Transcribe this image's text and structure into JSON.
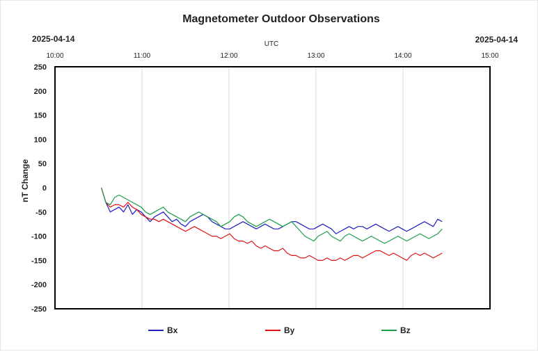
{
  "chart_data": {
    "type": "line",
    "title": "Magnetometer Outdoor Observations",
    "date_left": "2025-04-14",
    "date_right": "2025-04-14",
    "xlabel": "UTC",
    "ylabel": "nT Change",
    "xlim": [
      "10:00",
      "15:00"
    ],
    "x_ticks": [
      "10:00",
      "11:00",
      "12:00",
      "13:00",
      "14:00",
      "15:00"
    ],
    "ylim": [
      -250,
      250
    ],
    "y_ticks": [
      250,
      200,
      150,
      100,
      50,
      0,
      -50,
      -100,
      -150,
      -200,
      -250
    ],
    "grid": {
      "vertical": true,
      "horizontal": false
    },
    "legend_position": "bottom",
    "x_start": "10:32",
    "x_end": "14:27",
    "series": [
      {
        "name": "Bx",
        "color": "#1f1fbf",
        "values": [
          0,
          -30,
          -50,
          -45,
          -40,
          -50,
          -35,
          -55,
          -45,
          -50,
          -60,
          -70,
          -60,
          -55,
          -50,
          -60,
          -70,
          -65,
          -75,
          -80,
          -70,
          -65,
          -60,
          -55,
          -60,
          -70,
          -75,
          -80,
          -85,
          -85,
          -80,
          -75,
          -70,
          -75,
          -80,
          -85,
          -80,
          -75,
          -80,
          -85,
          -85,
          -80,
          -75,
          -70,
          -70,
          -75,
          -80,
          -85,
          -85,
          -80,
          -75,
          -80,
          -85,
          -95,
          -90,
          -85,
          -80,
          -85,
          -80,
          -80,
          -85,
          -80,
          -75,
          -80,
          -85,
          -90,
          -85,
          -80,
          -85,
          -90,
          -85,
          -80,
          -75,
          -70,
          -75,
          -80,
          -65,
          -70
        ]
      },
      {
        "name": "By",
        "color": "#e01010",
        "values": [
          0,
          -30,
          -40,
          -35,
          -35,
          -40,
          -30,
          -40,
          -45,
          -55,
          -60,
          -65,
          -65,
          -70,
          -65,
          -70,
          -75,
          -80,
          -85,
          -90,
          -85,
          -80,
          -85,
          -90,
          -95,
          -100,
          -100,
          -105,
          -100,
          -95,
          -105,
          -110,
          -110,
          -115,
          -110,
          -120,
          -125,
          -120,
          -125,
          -130,
          -130,
          -125,
          -135,
          -140,
          -140,
          -145,
          -145,
          -140,
          -145,
          -150,
          -150,
          -145,
          -150,
          -150,
          -145,
          -150,
          -145,
          -140,
          -140,
          -145,
          -140,
          -135,
          -130,
          -130,
          -135,
          -140,
          -135,
          -140,
          -145,
          -150,
          -140,
          -135,
          -140,
          -135,
          -140,
          -145,
          -140,
          -135
        ]
      },
      {
        "name": "Bz",
        "color": "#1a9c4a",
        "values": [
          0,
          -30,
          -35,
          -20,
          -15,
          -20,
          -25,
          -30,
          -35,
          -40,
          -50,
          -55,
          -50,
          -45,
          -40,
          -50,
          -55,
          -60,
          -65,
          -70,
          -60,
          -55,
          -50,
          -55,
          -60,
          -65,
          -70,
          -80,
          -75,
          -70,
          -60,
          -55,
          -60,
          -70,
          -75,
          -80,
          -75,
          -70,
          -65,
          -70,
          -75,
          -80,
          -75,
          -70,
          -80,
          -90,
          -100,
          -105,
          -110,
          -100,
          -95,
          -90,
          -100,
          -105,
          -110,
          -100,
          -95,
          -100,
          -105,
          -110,
          -105,
          -100,
          -105,
          -110,
          -115,
          -110,
          -105,
          -100,
          -105,
          -110,
          -105,
          -100,
          -95,
          -100,
          -105,
          -100,
          -95,
          -85
        ]
      }
    ]
  }
}
